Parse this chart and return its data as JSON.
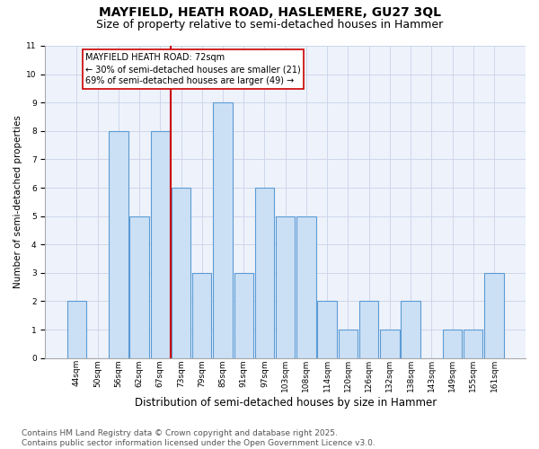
{
  "title": "MAYFIELD, HEATH ROAD, HASLEMERE, GU27 3QL",
  "subtitle": "Size of property relative to semi-detached houses in Hammer",
  "xlabel": "Distribution of semi-detached houses by size in Hammer",
  "ylabel": "Number of semi-detached properties",
  "categories": [
    "44sqm",
    "50sqm",
    "56sqm",
    "62sqm",
    "67sqm",
    "73sqm",
    "79sqm",
    "85sqm",
    "91sqm",
    "97sqm",
    "103sqm",
    "108sqm",
    "114sqm",
    "120sqm",
    "126sqm",
    "132sqm",
    "138sqm",
    "143sqm",
    "149sqm",
    "155sqm",
    "161sqm"
  ],
  "values": [
    2,
    0,
    8,
    5,
    8,
    6,
    3,
    9,
    3,
    6,
    5,
    5,
    2,
    1,
    2,
    1,
    2,
    0,
    1,
    1,
    3
  ],
  "bar_color": "#cce0f5",
  "bar_edge_color": "#5b9bd5",
  "vline_color": "#cc0000",
  "vline_x": 4.5,
  "ylim": [
    0,
    11
  ],
  "yticks": [
    0,
    1,
    2,
    3,
    4,
    5,
    6,
    7,
    8,
    9,
    10,
    11
  ],
  "annotation_text": "MAYFIELD HEATH ROAD: 72sqm\n← 30% of semi-detached houses are smaller (21)\n69% of semi-detached houses are larger (49) →",
  "annotation_box_edgecolor": "#cc0000",
  "footer": "Contains HM Land Registry data © Crown copyright and database right 2025.\nContains public sector information licensed under the Open Government Licence v3.0.",
  "plot_bg_color": "#eef2fb",
  "grid_color": "#c8d4e8",
  "title_fontsize": 10,
  "subtitle_fontsize": 9,
  "footer_fontsize": 6.5,
  "ann_fontsize": 7,
  "ylabel_fontsize": 7.5,
  "xlabel_fontsize": 8.5,
  "tick_fontsize": 6.5
}
